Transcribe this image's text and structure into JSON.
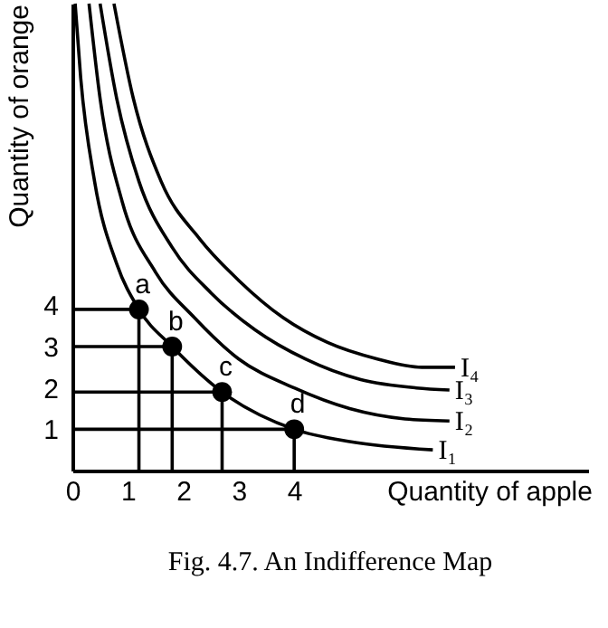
{
  "chart_data": {
    "type": "line",
    "title": "Fig. 4.7.  An Indifference Map",
    "xlabel": "Quantity of apple",
    "ylabel": "Quantity of orange",
    "xlim": [
      0,
      9.3
    ],
    "ylim": [
      0,
      11.3
    ],
    "xticks": [
      0,
      1,
      2,
      3,
      4
    ],
    "yticks": [
      1,
      2,
      3,
      4
    ],
    "grid": false,
    "series": [
      {
        "name": "I₁",
        "color": "#000000",
        "x": [
          0.05,
          0.15,
          0.4,
          0.8,
          1.2,
          1.8,
          2.7,
          4,
          5,
          6.5
        ],
        "values": [
          11.3,
          9.5,
          7,
          5,
          3.9,
          3,
          1.9,
          1,
          0.7,
          0.5
        ]
      },
      {
        "name": "I₂",
        "color": "#000000",
        "x": [
          0.3,
          0.5,
          0.9,
          1.5,
          2.2,
          3,
          4,
          5,
          6,
          6.8
        ],
        "values": [
          11.3,
          9,
          6.5,
          4.8,
          3.7,
          2.7,
          2,
          1.5,
          1.25,
          1.2
        ]
      },
      {
        "name": "I₃",
        "color": "#000000",
        "x": [
          0.5,
          0.8,
          1.2,
          1.8,
          2.5,
          3.3,
          4.2,
          5.2,
          6.2,
          6.8
        ],
        "values": [
          11.3,
          9,
          7,
          5.4,
          4.3,
          3.4,
          2.7,
          2.2,
          2,
          1.95
        ]
      },
      {
        "name": "I₄",
        "color": "#000000",
        "x": [
          0.75,
          1.1,
          1.6,
          2.3,
          3,
          3.8,
          4.6,
          5.5,
          6.3,
          6.9
        ],
        "values": [
          11.3,
          9,
          7,
          5.6,
          4.6,
          3.7,
          3.1,
          2.7,
          2.5,
          2.5
        ]
      },
      {
        "type": "line",
        "color": "#000000",
        "x": [
          0,
          1.2,
          1.2
        ],
        "values": [
          3.9,
          3.9,
          0
        ]
      },
      {
        "type": "line",
        "color": "#000000",
        "x": [
          0,
          1.8,
          1.8
        ],
        "values": [
          3,
          3,
          0
        ]
      },
      {
        "type": "line",
        "color": "#000000",
        "x": [
          0,
          2.7,
          2.7
        ],
        "values": [
          1.9,
          1.9,
          0
        ]
      },
      {
        "type": "line",
        "color": "#000000",
        "x": [
          0,
          4,
          4
        ],
        "values": [
          1,
          1,
          0
        ]
      },
      {
        "type": "scatter",
        "color": "#000000",
        "marker": "circle",
        "x": [
          1.2,
          1.8,
          2.7,
          4
        ],
        "values": [
          3.9,
          3,
          1.9,
          1
        ]
      }
    ],
    "annotations": [
      {
        "text": "a",
        "x": 1.2,
        "y": 3.9
      },
      {
        "text": "b",
        "x": 1.8,
        "y": 3
      },
      {
        "text": "c",
        "x": 2.7,
        "y": 1.9
      },
      {
        "text": "d",
        "x": 4,
        "y": 1
      }
    ]
  }
}
